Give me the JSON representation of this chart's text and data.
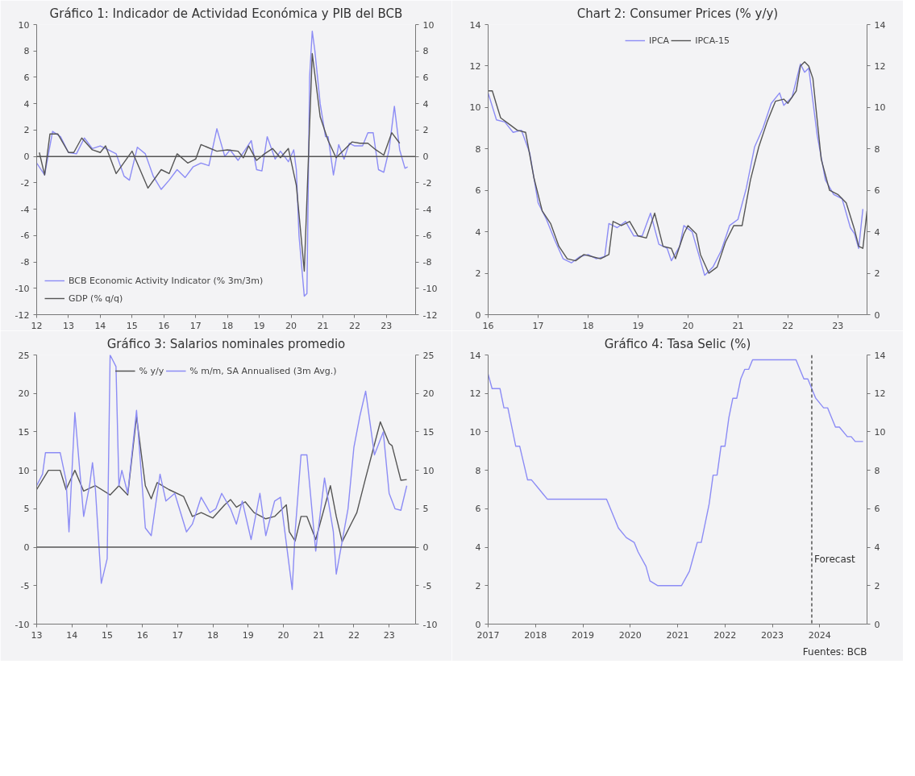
{
  "chart_data": [
    {
      "type": "line",
      "title": "Gráfico 1: Indicador de Actividad Económica y PIB del BCB",
      "xlim": [
        "2012-01",
        "2023-12"
      ],
      "xticks": [
        {
          "value": "2012-01",
          "label": "12"
        },
        {
          "value": "2013-01",
          "label": "13"
        },
        {
          "value": "2014-01",
          "label": "14"
        },
        {
          "value": "2015-01",
          "label": "15"
        },
        {
          "value": "2016-01",
          "label": "16"
        },
        {
          "value": "2017-01",
          "label": "17"
        },
        {
          "value": "2018-01",
          "label": "18"
        },
        {
          "value": "2019-01",
          "label": "19"
        },
        {
          "value": "2020-01",
          "label": "20"
        },
        {
          "value": "2021-01",
          "label": "21"
        },
        {
          "value": "2022-01",
          "label": "22"
        },
        {
          "value": "2023-01",
          "label": "23"
        }
      ],
      "ylim": [
        -12,
        10
      ],
      "yticks": [
        -12,
        -10,
        -8,
        -6,
        -4,
        -2,
        0,
        2,
        4,
        6,
        8,
        10
      ],
      "y2lim": [
        -12,
        10
      ],
      "y2ticks": [
        -12,
        -10,
        -8,
        -6,
        -4,
        -2,
        0,
        2,
        4,
        6,
        8,
        10
      ],
      "grid": false,
      "legend": "bottom left",
      "ref_lines": [
        {
          "axis": "y",
          "value": 0,
          "color": "#555555"
        }
      ],
      "series": [
        {
          "name": "BCB Economic Activity Indicator (% 3m/3m)",
          "color": "#8c8cf5",
          "x": [
            "2012-01",
            "2012-04",
            "2012-07",
            "2012-10",
            "2013-01",
            "2013-04",
            "2013-07",
            "2013-10",
            "2014-01",
            "2014-04",
            "2014-07",
            "2014-10",
            "2014-12",
            "2015-03",
            "2015-06",
            "2015-09",
            "2015-12",
            "2016-03",
            "2016-06",
            "2016-09",
            "2016-12",
            "2017-03",
            "2017-06",
            "2017-09",
            "2017-12",
            "2018-02",
            "2018-05",
            "2018-08",
            "2018-10",
            "2018-12",
            "2019-02",
            "2019-04",
            "2019-07",
            "2019-09",
            "2019-12",
            "2020-02",
            "2020-03",
            "2020-04",
            "2020-06",
            "2020-07",
            "2020-08",
            "2020-09",
            "2020-10",
            "2020-12",
            "2021-02",
            "2021-03",
            "2021-05",
            "2021-07",
            "2021-09",
            "2021-11",
            "2022-01",
            "2022-04",
            "2022-06",
            "2022-08",
            "2022-10",
            "2022-12",
            "2023-02",
            "2023-04",
            "2023-06",
            "2023-08",
            "2023-09"
          ],
          "values": [
            -0.5,
            -1.4,
            1.9,
            1.5,
            0.3,
            0.2,
            1.4,
            0.6,
            0.8,
            0.5,
            0.2,
            -1.5,
            -1.8,
            0.7,
            0.2,
            -1.5,
            -2.5,
            -1.8,
            -1.0,
            -1.6,
            -0.8,
            -0.5,
            -0.7,
            2.1,
            0.0,
            0.5,
            -0.3,
            0.6,
            1.2,
            -1.0,
            -1.1,
            1.5,
            -0.2,
            0.4,
            -0.4,
            0.5,
            -1.0,
            -6.0,
            -10.6,
            -10.4,
            6.0,
            9.5,
            8.0,
            4.0,
            1.5,
            1.5,
            -1.4,
            0.9,
            -0.2,
            1.0,
            0.8,
            0.8,
            1.8,
            1.8,
            -1.0,
            -1.2,
            0.5,
            3.8,
            0.5,
            -0.9,
            -0.8
          ]
        },
        {
          "name": "GDP (% q/q)",
          "color": "#555555",
          "x": [
            "2012-02",
            "2012-04",
            "2012-06",
            "2012-09",
            "2013-01",
            "2013-03",
            "2013-06",
            "2013-10",
            "2014-01",
            "2014-03",
            "2014-07",
            "2015-01",
            "2015-07",
            "2015-12",
            "2016-03",
            "2016-06",
            "2016-10",
            "2017-01",
            "2017-03",
            "2017-09",
            "2018-01",
            "2018-05",
            "2018-07",
            "2018-09",
            "2018-12",
            "2019-03",
            "2019-06",
            "2019-09",
            "2019-12",
            "2020-03",
            "2020-06",
            "2020-09",
            "2020-12",
            "2021-03",
            "2021-06",
            "2021-09",
            "2021-12",
            "2022-03",
            "2022-06",
            "2022-09",
            "2022-12",
            "2023-03",
            "2023-06"
          ],
          "values": [
            0.3,
            -1.4,
            1.7,
            1.7,
            0.3,
            0.3,
            1.4,
            0.5,
            0.3,
            0.8,
            -1.3,
            0.4,
            -2.4,
            -1.0,
            -1.3,
            0.2,
            -0.5,
            -0.2,
            0.9,
            0.4,
            0.5,
            0.4,
            -0.1,
            0.8,
            -0.3,
            0.2,
            0.6,
            -0.1,
            0.6,
            -2.2,
            -8.7,
            7.8,
            3.0,
            1.2,
            -0.1,
            0.5,
            1.1,
            1.0,
            1.0,
            0.5,
            0.1,
            1.8,
            1.0
          ]
        }
      ]
    },
    {
      "type": "line",
      "title": "Chart 2: Consumer Prices (% y/y)",
      "xlim": [
        "2016-01",
        "2023-08"
      ],
      "xticks": [
        {
          "value": "2016-01",
          "label": "16"
        },
        {
          "value": "2017-01",
          "label": "17"
        },
        {
          "value": "2018-01",
          "label": "18"
        },
        {
          "value": "2019-01",
          "label": "19"
        },
        {
          "value": "2020-01",
          "label": "20"
        },
        {
          "value": "2021-01",
          "label": "21"
        },
        {
          "value": "2022-01",
          "label": "22"
        },
        {
          "value": "2023-01",
          "label": "23"
        }
      ],
      "ylim": [
        0,
        14
      ],
      "yticks": [
        0,
        2,
        4,
        6,
        8,
        10,
        12,
        14
      ],
      "y2lim": [
        0,
        14
      ],
      "y2ticks": [
        0,
        2,
        4,
        6,
        8,
        10,
        12,
        14
      ],
      "grid": false,
      "legend": "top",
      "series": [
        {
          "name": "IPCA",
          "color": "#8c8cf5",
          "x": [
            "2016-01",
            "2016-03",
            "2016-05",
            "2016-07",
            "2016-09",
            "2016-11",
            "2017-01",
            "2017-03",
            "2017-05",
            "2017-07",
            "2017-09",
            "2017-11",
            "2018-01",
            "2018-03",
            "2018-05",
            "2018-06",
            "2018-08",
            "2018-10",
            "2018-12",
            "2019-02",
            "2019-04",
            "2019-06",
            "2019-08",
            "2019-09",
            "2019-11",
            "2019-12",
            "2020-02",
            "2020-03",
            "2020-05",
            "2020-07",
            "2020-09",
            "2020-11",
            "2021-01",
            "2021-03",
            "2021-05",
            "2021-07",
            "2021-09",
            "2021-11",
            "2021-12",
            "2022-02",
            "2022-03",
            "2022-04",
            "2022-05",
            "2022-06",
            "2022-08",
            "2022-10",
            "2022-12",
            "2023-02",
            "2023-04",
            "2023-05",
            "2023-06",
            "2023-07"
          ],
          "values": [
            10.7,
            9.4,
            9.3,
            8.8,
            8.9,
            7.8,
            5.4,
            4.6,
            3.6,
            2.7,
            2.5,
            2.8,
            2.9,
            2.7,
            2.8,
            4.4,
            4.2,
            4.5,
            3.8,
            3.8,
            4.9,
            3.4,
            3.2,
            2.6,
            3.3,
            4.3,
            4.0,
            3.3,
            1.9,
            2.3,
            3.1,
            4.3,
            4.6,
            6.1,
            8.1,
            9.0,
            10.2,
            10.7,
            10.1,
            10.5,
            11.3,
            12.1,
            11.7,
            11.9,
            8.7,
            6.5,
            5.8,
            5.6,
            4.2,
            3.9,
            3.2,
            5.1
          ]
        },
        {
          "name": "IPCA-15",
          "color": "#555555",
          "x": [
            "2016-01",
            "2016-02",
            "2016-04",
            "2016-06",
            "2016-08",
            "2016-10",
            "2016-12",
            "2017-02",
            "2017-04",
            "2017-06",
            "2017-08",
            "2017-10",
            "2017-12",
            "2018-02",
            "2018-04",
            "2018-06",
            "2018-07",
            "2018-09",
            "2018-11",
            "2019-01",
            "2019-03",
            "2019-05",
            "2019-07",
            "2019-09",
            "2019-10",
            "2019-12",
            "2020-01",
            "2020-03",
            "2020-04",
            "2020-06",
            "2020-08",
            "2020-10",
            "2020-12",
            "2021-02",
            "2021-04",
            "2021-06",
            "2021-08",
            "2021-10",
            "2021-12",
            "2022-01",
            "2022-03",
            "2022-04",
            "2022-05",
            "2022-06",
            "2022-07",
            "2022-09",
            "2022-11",
            "2023-01",
            "2023-03",
            "2023-05",
            "2023-06",
            "2023-07",
            "2023-08"
          ],
          "values": [
            10.8,
            10.8,
            9.5,
            9.2,
            8.9,
            8.8,
            6.6,
            5.0,
            4.4,
            3.3,
            2.7,
            2.6,
            2.9,
            2.8,
            2.7,
            2.9,
            4.5,
            4.3,
            4.5,
            3.8,
            3.7,
            4.9,
            3.3,
            3.2,
            2.7,
            3.9,
            4.3,
            3.9,
            2.9,
            2.0,
            2.3,
            3.5,
            4.3,
            4.3,
            6.5,
            8.1,
            9.3,
            10.3,
            10.4,
            10.2,
            10.8,
            12.0,
            12.2,
            12.0,
            11.4,
            7.5,
            6.0,
            5.8,
            5.4,
            4.1,
            3.3,
            3.2,
            5.0
          ]
        }
      ]
    },
    {
      "type": "line",
      "title": "Gráfico 3: Salarios nominales promedio",
      "xlim": [
        "2013-01",
        "2023-10"
      ],
      "xticks": [
        {
          "value": "2013-01",
          "label": "13"
        },
        {
          "value": "2014-01",
          "label": "14"
        },
        {
          "value": "2015-01",
          "label": "15"
        },
        {
          "value": "2016-01",
          "label": "16"
        },
        {
          "value": "2017-01",
          "label": "17"
        },
        {
          "value": "2018-01",
          "label": "18"
        },
        {
          "value": "2019-01",
          "label": "19"
        },
        {
          "value": "2020-01",
          "label": "20"
        },
        {
          "value": "2021-01",
          "label": "21"
        },
        {
          "value": "2022-01",
          "label": "22"
        },
        {
          "value": "2023-01",
          "label": "23"
        }
      ],
      "ylim": [
        -10,
        25
      ],
      "yticks": [
        -10,
        -5,
        0,
        5,
        10,
        15,
        20,
        25
      ],
      "y2lim": [
        -10,
        25
      ],
      "y2ticks": [
        -10,
        -5,
        0,
        5,
        10,
        15,
        20,
        25
      ],
      "grid": false,
      "legend": "top",
      "ref_lines": [
        {
          "axis": "y",
          "value": 0,
          "color": "#555555"
        }
      ],
      "series": [
        {
          "name": "% y/y",
          "color": "#555555",
          "x": [
            "2013-01",
            "2013-05",
            "2013-09",
            "2013-11",
            "2014-02",
            "2014-05",
            "2014-09",
            "2015-02",
            "2015-05",
            "2015-08",
            "2015-11",
            "2016-02",
            "2016-04",
            "2016-06",
            "2016-10",
            "2017-03",
            "2017-06",
            "2017-09",
            "2018-01",
            "2018-05",
            "2018-07",
            "2018-09",
            "2018-12",
            "2019-03",
            "2019-07",
            "2019-10",
            "2020-02",
            "2020-03",
            "2020-05",
            "2020-07",
            "2020-09",
            "2020-12",
            "2021-05",
            "2021-07",
            "2021-09",
            "2021-12",
            "2022-02",
            "2022-05",
            "2022-10",
            "2023-01",
            "2023-02",
            "2023-05",
            "2023-07"
          ],
          "values": [
            7.5,
            10.0,
            10.0,
            7.5,
            10.0,
            7.3,
            8.0,
            6.8,
            8.0,
            6.8,
            17.0,
            8.0,
            6.3,
            8.4,
            7.5,
            6.6,
            4.0,
            4.5,
            3.8,
            5.5,
            6.2,
            5.2,
            5.9,
            4.5,
            3.7,
            4.0,
            5.5,
            2.0,
            0.8,
            4.0,
            4.0,
            1.0,
            8.0,
            4.0,
            0.7,
            3.0,
            4.5,
            9.0,
            16.3,
            13.5,
            13.2,
            8.7,
            8.8
          ]
        },
        {
          "name": "% m/m, SA Annualised (3m Avg.)",
          "color": "#8c8cf5",
          "x": [
            "2013-01",
            "2013-03",
            "2013-04",
            "2013-09",
            "2013-11",
            "2013-12",
            "2014-02",
            "2014-05",
            "2014-07",
            "2014-08",
            "2014-09",
            "2014-11",
            "2015-01",
            "2015-02",
            "2015-04",
            "2015-05",
            "2015-06",
            "2015-08",
            "2015-11",
            "2016-02",
            "2016-04",
            "2016-07",
            "2016-09",
            "2016-12",
            "2017-04",
            "2017-06",
            "2017-09",
            "2017-12",
            "2018-02",
            "2018-04",
            "2018-07",
            "2018-09",
            "2018-11",
            "2019-02",
            "2019-05",
            "2019-07",
            "2019-10",
            "2019-12",
            "2020-04",
            "2020-05",
            "2020-07",
            "2020-09",
            "2020-12",
            "2021-03",
            "2021-06",
            "2021-07",
            "2021-11",
            "2022-01",
            "2022-03",
            "2022-05",
            "2022-08",
            "2022-11",
            "2023-01",
            "2023-03",
            "2023-05",
            "2023-07"
          ],
          "values": [
            8.0,
            9.5,
            12.3,
            12.3,
            8.7,
            2.0,
            17.5,
            4.0,
            8.0,
            11.0,
            7.5,
            -4.7,
            -1.5,
            25.0,
            23.5,
            8.0,
            10.0,
            7.0,
            17.8,
            2.5,
            1.5,
            9.5,
            6.0,
            7.0,
            2.0,
            3.0,
            6.5,
            4.5,
            5.0,
            7.0,
            5.0,
            3.0,
            6.0,
            1.0,
            7.0,
            1.5,
            6.0,
            6.5,
            -5.5,
            2.0,
            12.0,
            12.0,
            -0.5,
            9.0,
            2.0,
            -3.5,
            5.0,
            13.0,
            17.0,
            20.3,
            12.0,
            15.0,
            7.0,
            5.0,
            4.8,
            8.0
          ]
        }
      ]
    },
    {
      "type": "line",
      "title": "Gráfico 4: Tasa Selic (%)",
      "xlim": [
        "2017-01",
        "2025-01"
      ],
      "xticks": [
        "2017",
        "2018",
        "2019",
        "2020",
        "2021",
        "2022",
        "2023",
        "2024"
      ],
      "ylim": [
        0,
        14
      ],
      "yticks": [
        0,
        2,
        4,
        6,
        8,
        10,
        12,
        14
      ],
      "y2lim": [
        0,
        14
      ],
      "y2ticks": [
        0,
        2,
        4,
        6,
        8,
        10,
        12,
        14
      ],
      "grid": false,
      "annotations": [
        "Fuentes: BCB"
      ],
      "ref_lines": [
        {
          "axis": "x",
          "value": "2023-11",
          "label": "Forecast",
          "color": "#555555",
          "line_style": "dashed"
        }
      ],
      "series": [
        {
          "color": "#8c8cf5",
          "x": [
            "2017-01",
            "2017-02",
            "2017-04",
            "2017-05",
            "2017-06",
            "2017-08",
            "2017-09",
            "2017-11",
            "2017-12",
            "2018-02",
            "2018-03",
            "2018-04",
            "2019-07",
            "2019-09",
            "2019-10",
            "2019-12",
            "2020-02",
            "2020-03",
            "2020-05",
            "2020-06",
            "2020-08",
            "2021-02",
            "2021-04",
            "2021-05",
            "2021-06",
            "2021-07",
            "2021-09",
            "2021-10",
            "2021-11",
            "2021-12",
            "2022-01",
            "2022-02",
            "2022-03",
            "2022-04",
            "2022-05",
            "2022-06",
            "2022-07",
            "2022-08",
            "2023-07",
            "2023-08",
            "2023-09",
            "2023-10",
            "2023-12",
            "2024-02",
            "2024-03",
            "2024-05",
            "2024-06",
            "2024-08",
            "2024-09",
            "2024-10",
            "2024-12"
          ],
          "values": [
            13.0,
            12.25,
            12.25,
            11.25,
            11.25,
            9.25,
            9.25,
            7.5,
            7.5,
            7.0,
            6.75,
            6.5,
            6.5,
            5.5,
            5.0,
            4.5,
            4.25,
            3.75,
            3.0,
            2.25,
            2.0,
            2.0,
            2.75,
            3.5,
            4.25,
            4.25,
            6.25,
            7.75,
            7.75,
            9.25,
            9.25,
            10.75,
            11.75,
            11.75,
            12.75,
            13.25,
            13.25,
            13.75,
            13.75,
            13.25,
            12.75,
            12.75,
            11.75,
            11.25,
            11.25,
            10.25,
            10.25,
            9.75,
            9.75,
            9.5,
            9.5
          ]
        }
      ]
    }
  ]
}
